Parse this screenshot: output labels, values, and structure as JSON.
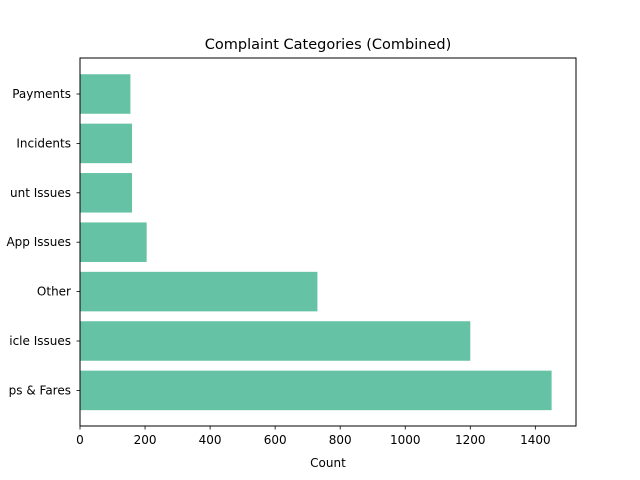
{
  "chart_data": {
    "type": "bar",
    "orientation": "horizontal",
    "title": "Complaint Categories (Combined)",
    "xlabel": "Count",
    "ylabel": "",
    "xlim": [
      0,
      1525
    ],
    "xticks": [
      0,
      200,
      400,
      600,
      800,
      1000,
      1200,
      1400
    ],
    "categories": [
      "Trips & Fares",
      "Vehicle Issues",
      "Other",
      "App Issues",
      "Account Issues",
      "Incidents",
      "Payments"
    ],
    "category_labels_visible": [
      "ps & Fares",
      "icle Issues",
      "Other",
      "App Issues",
      "unt Issues",
      "Incidents",
      "Payments"
    ],
    "values": [
      1450,
      1200,
      730,
      205,
      160,
      160,
      155
    ],
    "bar_color": "#66c2a5",
    "grid": false,
    "legend": "none"
  }
}
